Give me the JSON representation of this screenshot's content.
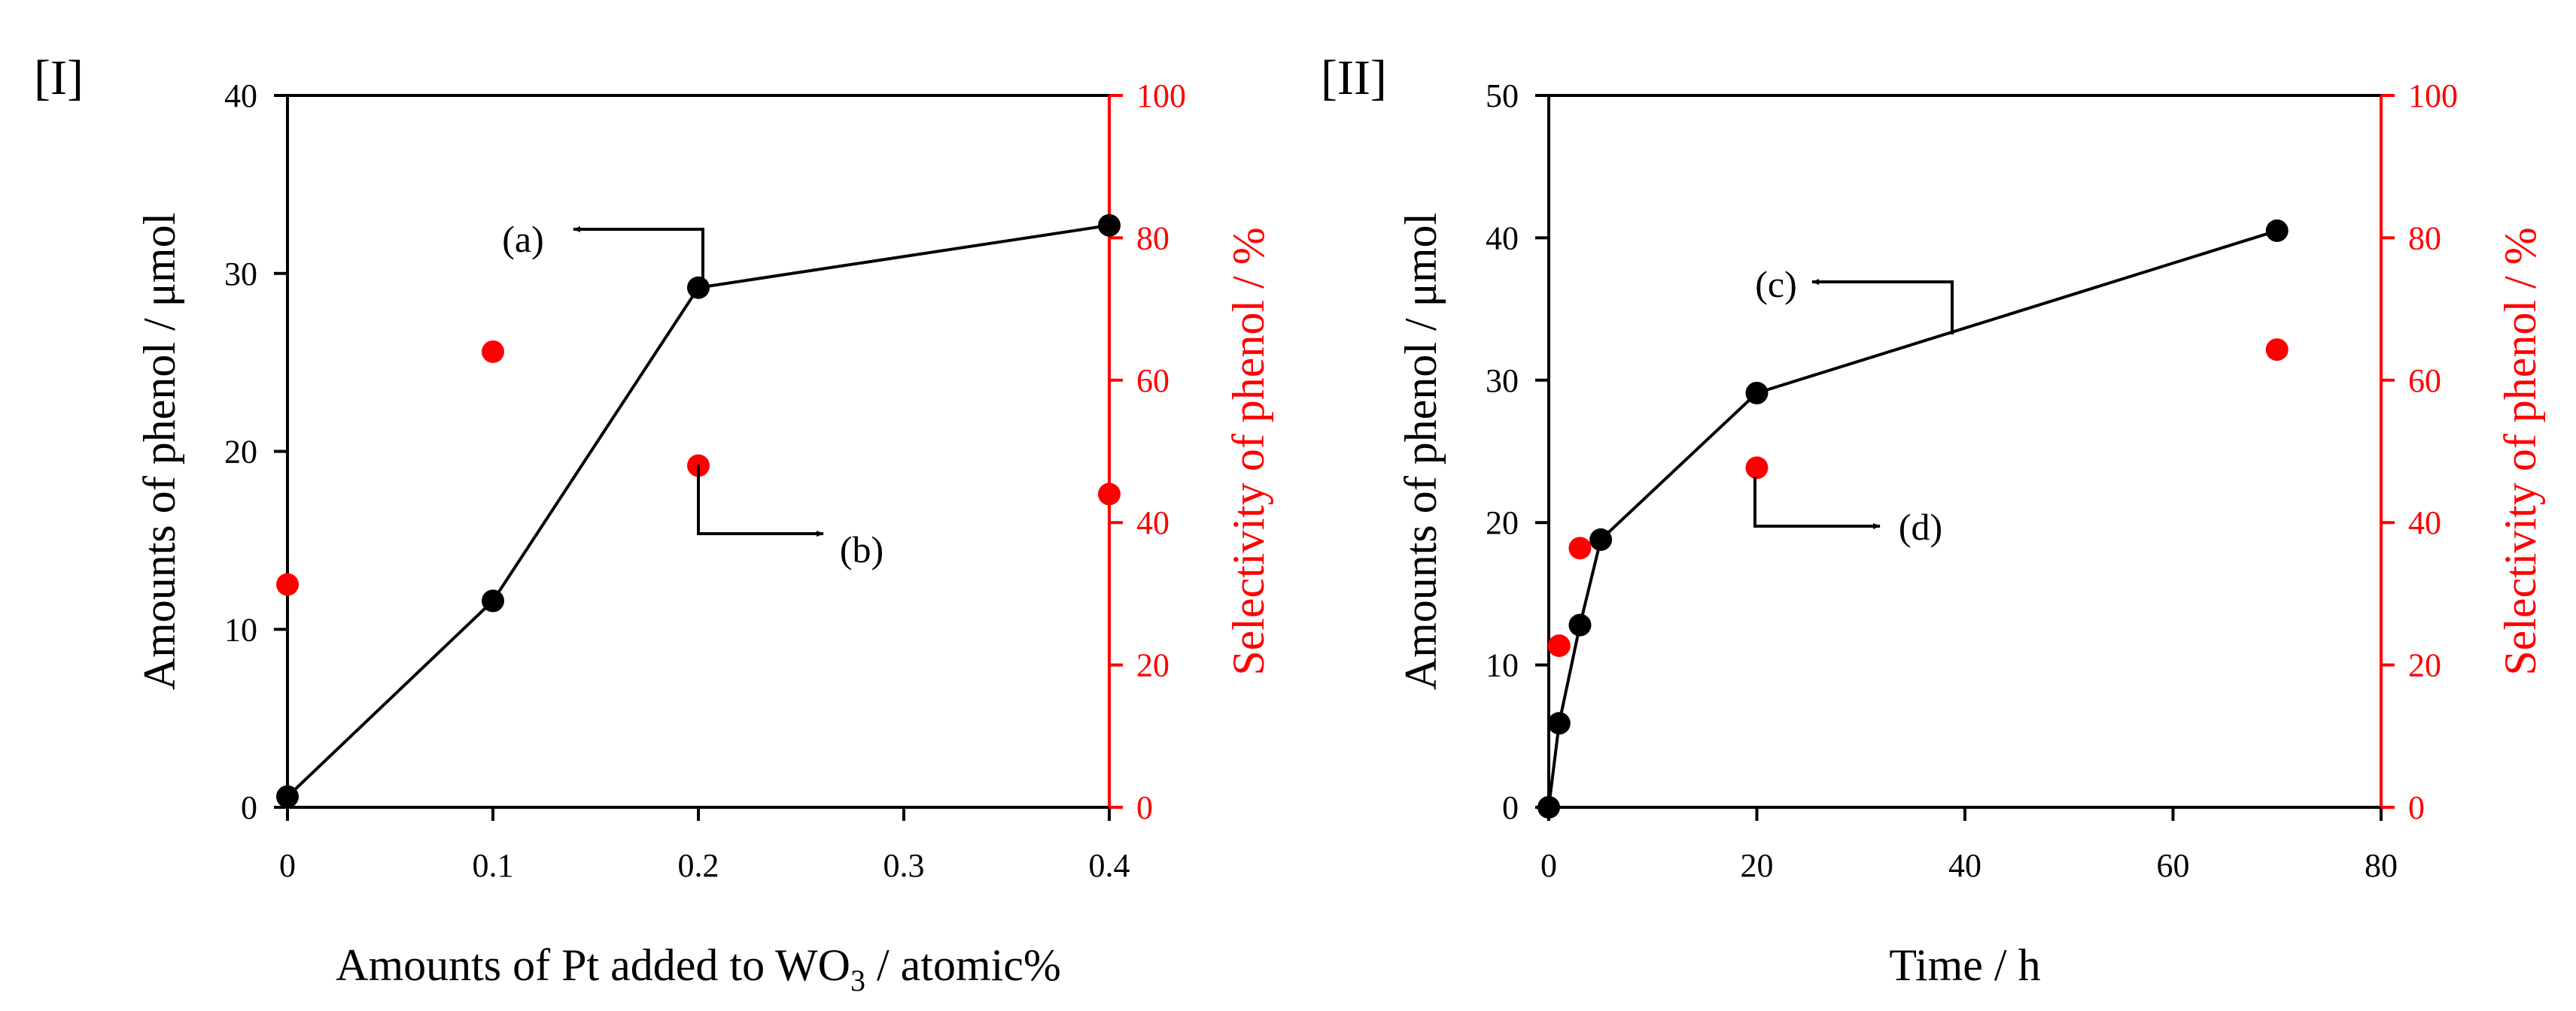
{
  "chart_data": [
    {
      "type": "line+scatter",
      "panel_label": "[I]",
      "xlabel_parts": [
        "Amounts of Pt added to WO",
        "3",
        " / atomic%"
      ],
      "ylabel_left": "Amounts of phenol  / μmol",
      "ylabel_right": "Selectivity of phenol  / %",
      "xlim": [
        0,
        0.4
      ],
      "ylim_left": [
        0,
        40
      ],
      "ylim_right": [
        0,
        100
      ],
      "xticks": [
        0,
        0.1,
        0.2,
        0.3,
        0.4
      ],
      "xtick_labels": [
        "0",
        "0.1",
        "0.2",
        "0.3",
        "0.4"
      ],
      "yticks_left": [
        0,
        10,
        20,
        30,
        40
      ],
      "ytick_labels_left": [
        "0",
        "10",
        "20",
        "30",
        "40"
      ],
      "yticks_right": [
        0,
        20,
        40,
        60,
        80,
        100
      ],
      "ytick_labels_right": [
        "0",
        "20",
        "40",
        "60",
        "80",
        "100"
      ],
      "series": [
        {
          "name": "Amounts of phenol",
          "axis": "left",
          "style": "line-marker",
          "color": "#000000",
          "x": [
            0,
            0.1,
            0.2,
            0.4
          ],
          "y": [
            0.6,
            11.6,
            29.2,
            32.7
          ]
        },
        {
          "name": "Selectivity of phenol",
          "axis": "right",
          "style": "marker",
          "color": "#ff0000",
          "x": [
            0,
            0.1,
            0.2,
            0.4
          ],
          "y": [
            31.3,
            64.0,
            48.0,
            44.0
          ]
        }
      ],
      "annotations": [
        {
          "text": "(a)",
          "target": "Amounts of phenol",
          "arrow": "left"
        },
        {
          "text": "(b)",
          "target": "Selectivity of phenol",
          "arrow": "right"
        }
      ]
    },
    {
      "type": "line+scatter",
      "panel_label": "[II]",
      "xlabel_parts": [
        "Time / h",
        "",
        ""
      ],
      "ylabel_left": "Amounts of phenol  / μmol",
      "ylabel_right": "Selectivity of phenol  / %",
      "xlim": [
        0,
        80
      ],
      "ylim_left": [
        0,
        50
      ],
      "ylim_right": [
        0,
        100
      ],
      "xticks": [
        0,
        20,
        40,
        60,
        80
      ],
      "xtick_labels": [
        "0",
        "20",
        "40",
        "60",
        "80"
      ],
      "yticks_left": [
        0,
        10,
        20,
        30,
        40,
        50
      ],
      "ytick_labels_left": [
        "0",
        "10",
        "20",
        "30",
        "40",
        "50"
      ],
      "yticks_right": [
        0,
        20,
        40,
        60,
        80,
        100
      ],
      "ytick_labels_right": [
        "0",
        "20",
        "40",
        "60",
        "80",
        "100"
      ],
      "series": [
        {
          "name": "Amounts of phenol",
          "axis": "left",
          "style": "line-marker",
          "color": "#000000",
          "x": [
            0,
            1,
            3,
            5,
            20,
            70
          ],
          "y": [
            0,
            5.9,
            12.8,
            18.8,
            29.1,
            40.5
          ]
        },
        {
          "name": "Selectivity of phenol",
          "axis": "right",
          "style": "marker",
          "color": "#ff0000",
          "x": [
            1,
            3,
            20,
            70
          ],
          "y": [
            22.7,
            36.4,
            47.7,
            64.3
          ]
        }
      ],
      "annotations": [
        {
          "text": "(c)",
          "target": "Amounts of phenol",
          "arrow": "left"
        },
        {
          "text": "(d)",
          "target": "Selectivity of phenol",
          "arrow": "right"
        }
      ]
    }
  ],
  "colors": {
    "axis_left": "#000000",
    "axis_right": "#ff0000",
    "series_amount": "#000000",
    "series_selectivity": "#ff0000"
  }
}
